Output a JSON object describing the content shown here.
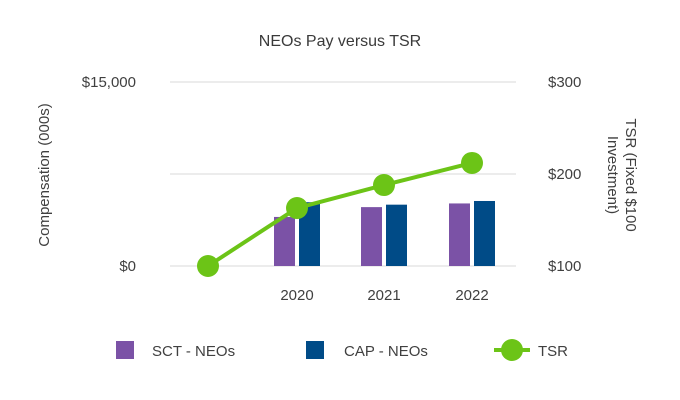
{
  "chart_data": {
    "type": "bar",
    "title": "NEOs Pay versus TSR",
    "ylabel": "Compensation (000s)",
    "y2label": [
      "TSR (Fixed $100",
      "Investment)"
    ],
    "ylim": [
      0,
      15000
    ],
    "y2lim": [
      100,
      300
    ],
    "yticks": [
      {
        "value": 0,
        "label": "$0"
      },
      {
        "value": 15000,
        "label": "$15,000"
      }
    ],
    "y2ticks": [
      {
        "value": 100,
        "label": "$100"
      },
      {
        "value": 200,
        "label": "$200"
      },
      {
        "value": 300,
        "label": "$300"
      }
    ],
    "x": [
      "",
      "2020",
      "2021",
      "2022"
    ],
    "series": [
      {
        "name": "SCT - NEOs",
        "type": "bar",
        "color": "#7b52a6",
        "values": [
          null,
          4000,
          4800,
          5100
        ]
      },
      {
        "name": "CAP - NEOs",
        "type": "bar",
        "color": "#004b87",
        "values": [
          null,
          5200,
          5000,
          5300
        ]
      },
      {
        "name": "TSR",
        "type": "line",
        "color": "#6cc417",
        "values": [
          100,
          163,
          188,
          212
        ]
      }
    ],
    "grid": true,
    "legend": "bottom"
  }
}
